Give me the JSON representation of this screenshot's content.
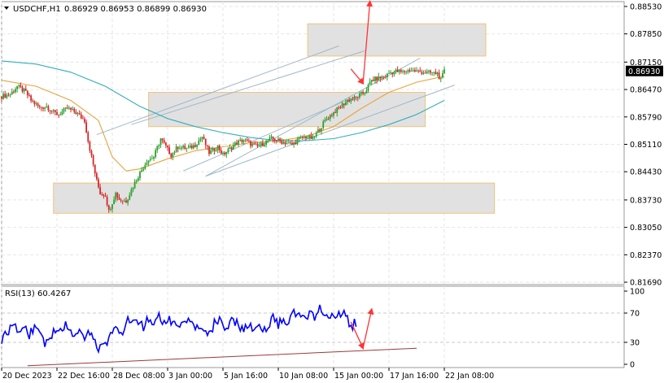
{
  "header": {
    "symbol": "USDCHF,H1",
    "ohlc": "0.86929 0.86953 0.86899 0.86930"
  },
  "rsi": {
    "label": "RSI(13) 60.4267"
  },
  "colors": {
    "bull": "#2ca02c",
    "bear": "#d62728",
    "ma_fast": "#e8a33c",
    "ma_slow": "#33aebb",
    "rsi_line": "#0000ff",
    "zone_fill": "#e0e0e0",
    "zone_border": "#f0c070",
    "trend_line": "#9fb8c8",
    "arrow": "#ff3333",
    "rsi_trend": "#9a3a3a",
    "grid": "#e6e6e6"
  },
  "chart_data": [
    {
      "type": "line",
      "title": "USDCHF,H1",
      "price_axis": {
        "labels": [
          "0.88530",
          "0.87850",
          "0.87150",
          "0.86470",
          "0.85790",
          "0.85110",
          "0.84430",
          "0.83730",
          "0.83050",
          "0.82370",
          "0.81690"
        ],
        "values": [
          0.8853,
          0.8785,
          0.8715,
          0.8647,
          0.8579,
          0.8511,
          0.8443,
          0.8373,
          0.8305,
          0.8237,
          0.8169
        ],
        "ylim": [
          0.8163,
          0.8865
        ]
      },
      "time_axis": {
        "labels": [
          "20 Dec 2023",
          "22 Dec 16:00",
          "28 Dec 08:00",
          "3 Jan 00:00",
          "5 Jan 16:00",
          "10 Jan 08:00",
          "15 Jan 00:00",
          "17 Jan 16:00",
          "22 Jan 08:00"
        ],
        "bar_index": [
          0,
          32,
          64,
          96,
          128,
          160,
          192,
          224,
          256
        ],
        "xlim": [
          0,
          360
        ]
      },
      "current_price": "0.86930",
      "price_path": {
        "x": [
          0,
          5,
          9,
          14,
          17,
          22,
          26,
          30,
          33,
          38,
          43,
          48,
          50,
          55,
          57,
          60,
          62,
          66,
          68,
          72,
          78,
          84,
          88,
          92,
          98,
          102,
          108,
          112,
          116,
          120,
          125,
          128,
          132,
          136,
          140,
          144,
          148,
          152,
          156,
          160,
          164,
          168,
          172,
          176,
          180,
          184,
          188,
          192,
          196,
          200,
          204,
          210,
          214,
          218,
          222,
          224,
          228,
          232,
          236,
          240,
          244,
          248,
          252,
          254,
          256
        ],
        "close": [
          0.863,
          0.8635,
          0.8655,
          0.864,
          0.862,
          0.8602,
          0.8605,
          0.859,
          0.8585,
          0.86,
          0.859,
          0.857,
          0.852,
          0.842,
          0.839,
          0.8385,
          0.8345,
          0.839,
          0.8375,
          0.837,
          0.8425,
          0.847,
          0.848,
          0.8525,
          0.8485,
          0.8505,
          0.85,
          0.851,
          0.853,
          0.849,
          0.8505,
          0.8485,
          0.85,
          0.8515,
          0.8522,
          0.8512,
          0.8505,
          0.8515,
          0.8525,
          0.852,
          0.8515,
          0.851,
          0.8525,
          0.853,
          0.8525,
          0.855,
          0.8575,
          0.859,
          0.8605,
          0.862,
          0.8625,
          0.864,
          0.867,
          0.8675,
          0.868,
          0.8688,
          0.8692,
          0.869,
          0.8695,
          0.8692,
          0.869,
          0.8688,
          0.8687,
          0.867,
          0.8693
        ]
      },
      "ma_fast": {
        "x": [
          0,
          20,
          40,
          56,
          64,
          72,
          80,
          96,
          112,
          128,
          144,
          160,
          176,
          192,
          208,
          224,
          240,
          256
        ],
        "y": [
          0.867,
          0.8655,
          0.862,
          0.857,
          0.848,
          0.8445,
          0.845,
          0.8475,
          0.8495,
          0.8505,
          0.8515,
          0.852,
          0.853,
          0.8555,
          0.86,
          0.864,
          0.8665,
          0.868
        ]
      },
      "ma_slow": {
        "x": [
          0,
          20,
          40,
          60,
          80,
          96,
          112,
          128,
          144,
          160,
          176,
          192,
          208,
          224,
          240,
          256
        ],
        "y": [
          0.8718,
          0.871,
          0.869,
          0.8655,
          0.8605,
          0.8575,
          0.8555,
          0.854,
          0.8528,
          0.852,
          0.852,
          0.8525,
          0.854,
          0.856,
          0.8585,
          0.862
        ]
      },
      "zones": [
        {
          "x1": 177,
          "x2": 280,
          "y1": 0.881,
          "y2": 0.873
        },
        {
          "x1": 85,
          "x2": 245,
          "y1": 0.864,
          "y2": 0.8555
        },
        {
          "x1": 30,
          "x2": 285,
          "y1": 0.8415,
          "y2": 0.834
        }
      ],
      "trend_lines": [
        {
          "x1": 55,
          "y1": 0.8535,
          "x2": 195,
          "y2": 0.8755
        },
        {
          "x1": 75,
          "y1": 0.856,
          "x2": 210,
          "y2": 0.8743
        },
        {
          "x1": 105,
          "y1": 0.8445,
          "x2": 205,
          "y2": 0.863
        },
        {
          "x1": 118,
          "y1": 0.8432,
          "x2": 242,
          "y2": 0.8725
        },
        {
          "x1": 118,
          "y1": 0.8432,
          "x2": 262,
          "y2": 0.8658
        }
      ],
      "arrows": [
        {
          "from_x": 202,
          "from_y": 0.8698,
          "to_x": 209,
          "to_y": 0.8662
        },
        {
          "from_x": 209,
          "from_y": 0.8662,
          "to_x": 213,
          "to_y": 0.8865
        }
      ]
    },
    {
      "type": "line",
      "title": "RSI(13) 60.4267",
      "ylim": [
        0,
        100
      ],
      "levels": [
        30,
        70
      ],
      "axis_labels": [
        "100",
        "70",
        "30",
        "0"
      ],
      "axis_values": [
        100,
        70,
        30,
        0
      ],
      "series": [
        {
          "x": [
            0,
            4,
            7,
            10,
            13,
            16,
            19,
            22,
            25,
            28,
            31,
            34,
            37,
            40,
            43,
            46,
            49,
            52,
            55,
            58,
            61,
            64,
            67,
            70,
            73,
            76,
            79,
            82,
            85,
            88,
            91,
            94,
            97,
            100,
            103,
            106,
            109,
            112,
            115,
            118,
            121,
            124,
            127,
            130,
            133,
            136,
            139,
            142,
            145,
            148,
            151,
            154,
            157,
            160,
            163,
            166,
            169,
            172,
            175,
            178,
            181,
            184,
            187,
            190,
            193,
            196,
            199,
            202,
            205
          ],
          "values": [
            35,
            45,
            52,
            48,
            55,
            40,
            52,
            42,
            30,
            38,
            48,
            50,
            52,
            45,
            40,
            42,
            35,
            48,
            20,
            22,
            28,
            45,
            48,
            42,
            60,
            62,
            58,
            50,
            62,
            55,
            65,
            58,
            60,
            52,
            48,
            62,
            58,
            50,
            52,
            40,
            45,
            62,
            58,
            50,
            62,
            55,
            48,
            52,
            50,
            58,
            45,
            52,
            62,
            55,
            62,
            60,
            70,
            68,
            62,
            70,
            65,
            78,
            65,
            60,
            68,
            70,
            72,
            50,
            58
          ]
        }
      ],
      "trend_line": {
        "x1": 15,
        "y1": -2,
        "x2": 240,
        "y2": 22
      },
      "arrows": [
        {
          "from_x": 202,
          "from_y": 58,
          "to_x": 209,
          "to_y": 22
        },
        {
          "from_x": 209,
          "from_y": 22,
          "to_x": 214,
          "to_y": 75
        }
      ]
    }
  ]
}
